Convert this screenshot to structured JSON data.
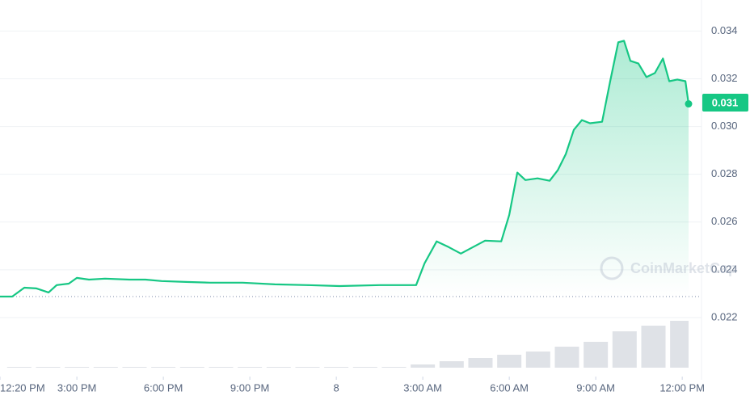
{
  "chart_data": {
    "type": "area",
    "watermark": "CoinMarketCap",
    "color": "#16c784",
    "x": [
      12.333,
      12.757,
      13.178,
      13.598,
      14.019,
      14.299,
      14.72,
      15,
      15.42,
      15.98,
      16.82,
      17.38,
      17.94,
      18.78,
      19.63,
      20.75,
      21.87,
      22.99,
      24.11,
      25.51,
      26.77,
      27.06,
      27.48,
      27.9,
      28.32,
      28.74,
      29.16,
      29.72,
      30.0,
      30.28,
      30.56,
      30.98,
      31.4,
      31.68,
      31.96,
      32.24,
      32.52,
      32.8,
      33.22,
      33.5,
      33.78,
      33.98,
      34.2,
      34.48,
      34.76,
      35.05,
      35.33,
      35.55,
      35.83,
      36.11,
      36.22
    ],
    "values": [
      0.02288,
      0.02288,
      0.02325,
      0.02322,
      0.02305,
      0.02336,
      0.02342,
      0.02366,
      0.02359,
      0.02363,
      0.02359,
      0.02359,
      0.02353,
      0.02349,
      0.02346,
      0.02346,
      0.02339,
      0.02336,
      0.02332,
      0.02336,
      0.02336,
      0.02427,
      0.02519,
      0.02495,
      0.02468,
      0.02495,
      0.02522,
      0.02519,
      0.0263,
      0.02807,
      0.02776,
      0.02783,
      0.02773,
      0.02817,
      0.02885,
      0.02986,
      0.03027,
      0.03014,
      0.0302,
      0.0319,
      0.03353,
      0.03359,
      0.03275,
      0.03264,
      0.03207,
      0.03224,
      0.03285,
      0.0319,
      0.03197,
      0.0319,
      0.03095
    ],
    "current_price": {
      "value": 0.031,
      "label": "0.031"
    },
    "reference_line": 0.02288,
    "xlim": [
      12.333,
      36.22
    ],
    "xticks": [
      {
        "value": 12.333,
        "label": "12:20 PM"
      },
      {
        "value": 15,
        "label": "3:00 PM"
      },
      {
        "value": 18,
        "label": "6:00 PM"
      },
      {
        "value": 21,
        "label": "9:00 PM"
      },
      {
        "value": 24,
        "label": "8"
      },
      {
        "value": 27,
        "label": "3:00 AM"
      },
      {
        "value": 30,
        "label": "6:00 AM"
      },
      {
        "value": 33,
        "label": "9:00 AM"
      },
      {
        "value": 36,
        "label": "12:00 PM"
      }
    ],
    "ylim": [
      0.0199,
      0.0353
    ],
    "yticks": [
      0.022,
      0.024,
      0.026,
      0.028,
      {
        "value": 0.03,
        "label": "0.030"
      },
      0.032,
      0.034
    ],
    "grid": true,
    "volume": {
      "color": "#dfe2e7",
      "x": [
        13,
        14,
        15,
        16,
        17,
        18,
        19,
        20,
        21,
        22,
        23,
        24,
        25,
        26,
        27,
        28,
        29,
        30,
        31,
        32,
        33,
        34,
        35,
        36
      ],
      "values": [
        1,
        1,
        1,
        1,
        1,
        1,
        1,
        1,
        1,
        1,
        1,
        1,
        1,
        1,
        4,
        8,
        12,
        16,
        20,
        26,
        32,
        45,
        52,
        58
      ],
      "ylim": [
        0,
        60
      ]
    }
  }
}
